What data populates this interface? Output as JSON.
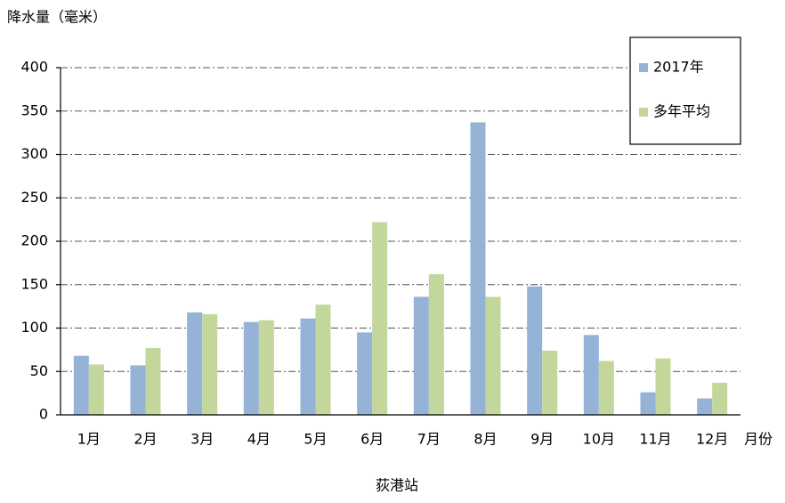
{
  "chart_data": {
    "type": "bar",
    "y_label": "降水量（毫米）",
    "x_label": "月份",
    "caption": "荻港站",
    "categories": [
      "1月",
      "2月",
      "3月",
      "4月",
      "5月",
      "6月",
      "7月",
      "8月",
      "9月",
      "10月",
      "11月",
      "12月"
    ],
    "series": [
      {
        "name": "2017年",
        "color": "#95b3d7",
        "values": [
          68,
          57,
          118,
          107,
          111,
          95,
          136,
          337,
          148,
          92,
          26,
          19
        ]
      },
      {
        "name": "多年平均",
        "color": "#c3d69b",
        "values": [
          58,
          77,
          116,
          109,
          127,
          222,
          162,
          136,
          74,
          62,
          65,
          37
        ]
      }
    ],
    "ylim": [
      0,
      400
    ],
    "yticks": [
      0,
      50,
      100,
      150,
      200,
      250,
      300,
      350,
      400
    ],
    "grid": true,
    "legend": "upper right"
  }
}
